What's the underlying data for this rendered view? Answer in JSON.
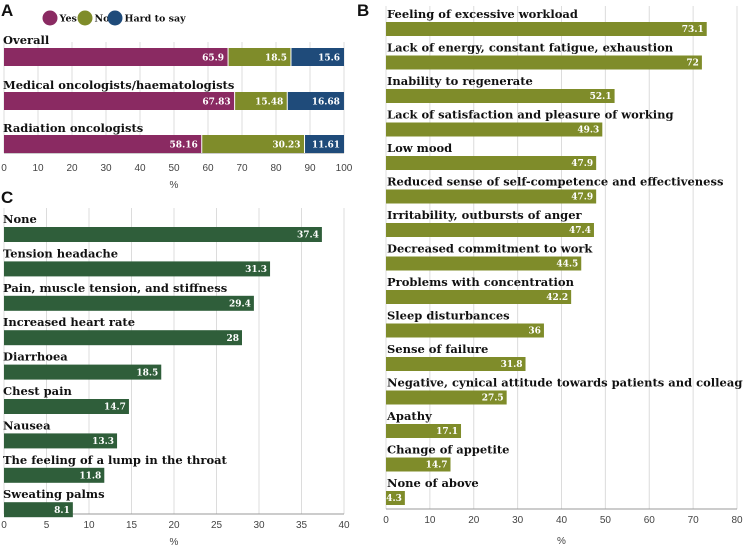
{
  "chart_data": [
    {
      "panel": "A",
      "type": "bar",
      "orientation": "horizontal",
      "stacked": true,
      "legend": [
        "Yes",
        "No",
        "Hard to say"
      ],
      "colors": [
        "#8a2a62",
        "#7f8c2a",
        "#1f4b7a"
      ],
      "categories": [
        "Overall",
        "Medical oncologists/haematologists",
        "Radiation oncologists"
      ],
      "series": [
        {
          "name": "Yes",
          "values": [
            65.9,
            67.83,
            58.16
          ],
          "labels": [
            "65.9",
            "67.83",
            "58.16"
          ]
        },
        {
          "name": "No",
          "values": [
            18.5,
            15.48,
            30.23
          ],
          "labels": [
            "18.5",
            "15.48",
            "30.23"
          ]
        },
        {
          "name": "Hard to say",
          "values": [
            15.6,
            16.68,
            11.61
          ],
          "labels": [
            "15.6",
            "16.68",
            "11.61"
          ]
        }
      ],
      "xlim": [
        0,
        100
      ],
      "xticks": [
        "0",
        "10",
        "20",
        "30",
        "40",
        "50",
        "60",
        "70",
        "80",
        "90",
        "100"
      ],
      "xlabel": "%"
    },
    {
      "panel": "B",
      "type": "bar",
      "orientation": "horizontal",
      "color": "#7f8c2a",
      "categories": [
        "Feeling of excessive workload",
        "Lack of energy, constant fatigue, exhaustion",
        "Inability to regenerate",
        "Lack of satisfaction and pleasure of working",
        "Low mood",
        "Reduced sense of self-competence and effectiveness",
        "Irritability, outbursts of anger",
        "Decreased commitment to work",
        "Problems with concentration",
        "Sleep disturbances",
        "Sense of failure",
        "Negative, cynical attitude towards patients and colleagues",
        "Apathy",
        "Change of appetite",
        "None of above"
      ],
      "values": [
        73.1,
        72,
        52.1,
        49.3,
        47.9,
        47.9,
        47.4,
        44.5,
        42.2,
        36,
        31.8,
        27.5,
        17.1,
        14.7,
        4.3
      ],
      "labels": [
        "73.1",
        "72",
        "52.1",
        "49.3",
        "47.9",
        "47.9",
        "47.4",
        "44.5",
        "42.2",
        "36",
        "31.8",
        "27.5",
        "17.1",
        "14.7",
        "4.3"
      ],
      "xlim": [
        0,
        80
      ],
      "xticks": [
        "0",
        "10",
        "20",
        "30",
        "40",
        "50",
        "60",
        "70",
        "80"
      ],
      "xlabel": "%"
    },
    {
      "panel": "C",
      "type": "bar",
      "orientation": "horizontal",
      "color": "#2f5e3a",
      "categories": [
        "None",
        "Tension headache",
        "Pain, muscle tension, and stiffness",
        "Increased heart rate",
        "Diarrhoea",
        "Chest pain",
        "Nausea",
        "The feeling of a lump in the throat",
        "Sweating palms"
      ],
      "values": [
        37.4,
        31.3,
        29.4,
        28,
        18.5,
        14.7,
        13.3,
        11.8,
        8.1
      ],
      "labels": [
        "37.4",
        "31.3",
        "29.4",
        "28",
        "18.5",
        "14.7",
        "13.3",
        "11.8",
        "8.1"
      ],
      "xlim": [
        0,
        40
      ],
      "xticks": [
        "0",
        "5",
        "10",
        "15",
        "20",
        "25",
        "30",
        "35",
        "40"
      ],
      "xlabel": "%"
    }
  ]
}
